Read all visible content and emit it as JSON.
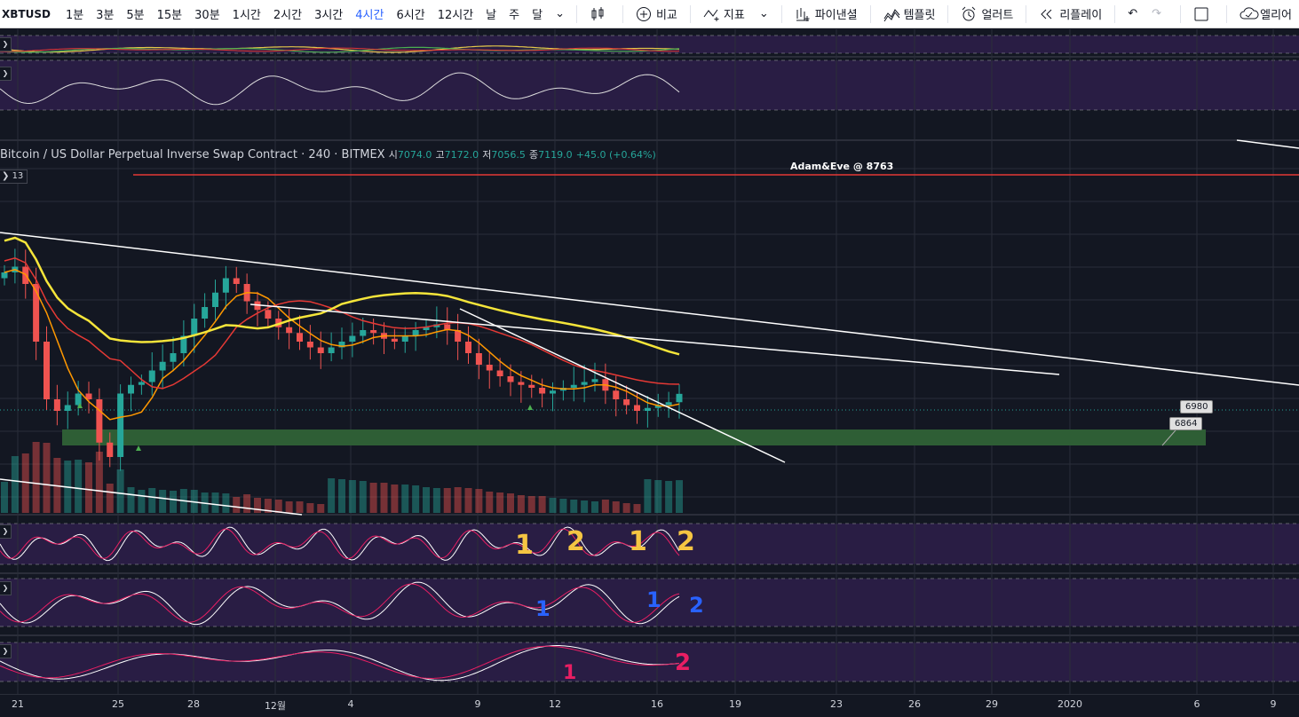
{
  "toolbar": {
    "symbol": "XBTUSD",
    "intervals": [
      "1분",
      "3분",
      "5분",
      "15분",
      "30분",
      "1시간",
      "2시간",
      "3시간",
      "4시간",
      "6시간",
      "12시간",
      "날",
      "주",
      "달"
    ],
    "active_interval": "4시간",
    "compare": "비교",
    "indicators": "지표",
    "financials": "파이낸셜",
    "templates": "템플릿",
    "alert": "얼러트",
    "replay": "리플레이",
    "alert_right": "엘리어"
  },
  "legend": {
    "title": "Bitcoin / US Dollar Perpetual Inverse Swap Contract · 240 · BITMEX",
    "o_label": "시",
    "o": "7074.0",
    "h_label": "고",
    "h": "7172.0",
    "l_label": "저",
    "l": "7056.5",
    "c_label": "종",
    "c": "7119.0",
    "change": "+45.0 (+0.64%)"
  },
  "volume_badge": "13",
  "colors": {
    "bg": "#131722",
    "up": "#26a69a",
    "down": "#ef5350",
    "ma_yellow": "#f5e53a",
    "ma_red": "#e53935",
    "ma_orange": "#ff9800",
    "zone": "#2e5e35",
    "osc_band": "#2e1f4a"
  },
  "chart_data": {
    "type": "candlestick",
    "symbol": "XBTUSD",
    "exchange": "BITMEX",
    "timeframe": "240",
    "x_tick_labels": [
      "21",
      "25",
      "28",
      "12월",
      "4",
      "9",
      "12",
      "16",
      "19",
      "23",
      "26",
      "29",
      "2020",
      "6",
      "9"
    ],
    "ohlc_last": {
      "open": 7074.0,
      "high": 7172.0,
      "low": 7056.5,
      "close": 7119.0,
      "change": 45.0,
      "change_pct": 0.64
    },
    "close_series": [
      7540,
      7560,
      7500,
      7300,
      7100,
      7060,
      7080,
      7120,
      7100,
      6950,
      6900,
      7120,
      7150,
      7160,
      7200,
      7230,
      7260,
      7320,
      7380,
      7420,
      7470,
      7520,
      7500,
      7440,
      7410,
      7380,
      7350,
      7330,
      7300,
      7280,
      7260,
      7280,
      7300,
      7320,
      7340,
      7330,
      7310,
      7300,
      7320,
      7340,
      7350,
      7360,
      7340,
      7300,
      7260,
      7220,
      7200,
      7180,
      7160,
      7150,
      7140,
      7120,
      7130,
      7140,
      7150,
      7160,
      7170,
      7130,
      7100,
      7080,
      7060,
      7070,
      7080,
      7090,
      7119
    ],
    "horizontal_lines": [
      {
        "label": "Adam&Eve @ 8763",
        "value": 8763
      }
    ],
    "price_labels": [
      6980.0,
      6864.0
    ],
    "annotations": [
      "1",
      "2",
      "1",
      "2",
      "1",
      "1",
      "2",
      "1",
      "2"
    ]
  }
}
